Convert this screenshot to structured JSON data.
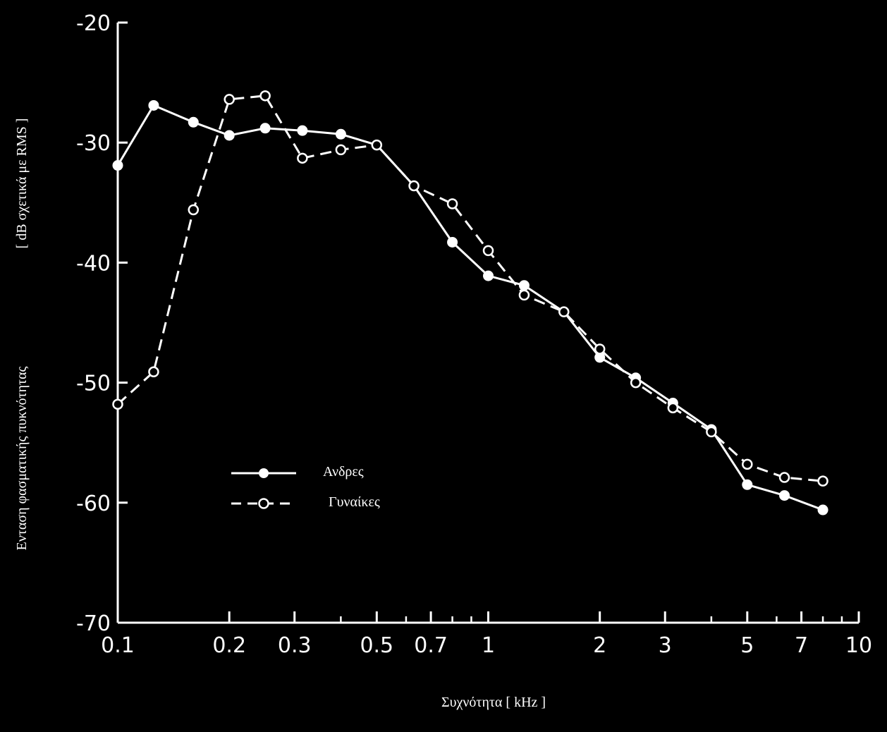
{
  "chart_data": {
    "type": "line",
    "title": "",
    "xlabel": "Συχνότητα [ kHz ]",
    "ylabel": "Ενταση φασματικής πυκνότητας [ dB σχετικά με RMS ]",
    "ylabel_lines": [
      "[ dB σχετικά με RMS ]",
      "Ενταση φασματικής πυκνότητας"
    ],
    "x_scale": "log",
    "xlim": [
      0.1,
      10
    ],
    "ylim": [
      -70,
      -20
    ],
    "grid": false,
    "background_color": "#000000",
    "foreground_color": "#ffffff",
    "x_ticks": [
      {
        "value": 0.1,
        "label": "0.1"
      },
      {
        "value": 0.2,
        "label": "0.2"
      },
      {
        "value": 0.3,
        "label": "0.3"
      },
      {
        "value": 0.5,
        "label": "0.5"
      },
      {
        "value": 0.7,
        "label": "0.7"
      },
      {
        "value": 1,
        "label": "1"
      },
      {
        "value": 2,
        "label": "2"
      },
      {
        "value": 3,
        "label": "3"
      },
      {
        "value": 5,
        "label": "5"
      },
      {
        "value": 7,
        "label": "7"
      },
      {
        "value": 10,
        "label": "10"
      }
    ],
    "x_minor_ticks": [
      0.4,
      0.6,
      0.8,
      0.9,
      4,
      6,
      8,
      9
    ],
    "y_ticks": [
      {
        "value": -20,
        "label": "-20"
      },
      {
        "value": -30,
        "label": "-30"
      },
      {
        "value": -40,
        "label": "-40"
      },
      {
        "value": -50,
        "label": "-50"
      },
      {
        "value": -60,
        "label": "-60"
      },
      {
        "value": -70,
        "label": "-70"
      }
    ],
    "legend": {
      "placement": "center-left",
      "entries": [
        "Ανδρες",
        "Γυναίκες"
      ]
    },
    "series": [
      {
        "name": "Ανδρες",
        "line_style": "solid",
        "marker": "filled-circle",
        "x": [
          0.1,
          0.125,
          0.16,
          0.2,
          0.25,
          0.315,
          0.4,
          0.5,
          0.63,
          0.8,
          1,
          1.25,
          1.6,
          2,
          2.5,
          3.15,
          4,
          5,
          6.3,
          8
        ],
        "y": [
          -31.9,
          -26.9,
          -28.3,
          -29.4,
          -28.8,
          -29.0,
          -29.3,
          -30.2,
          -33.6,
          -38.3,
          -41.1,
          -41.9,
          -44.1,
          -47.9,
          -49.6,
          -51.7,
          -53.9,
          -58.5,
          -59.4,
          -60.6
        ]
      },
      {
        "name": "Γυναίκες",
        "line_style": "dashed",
        "marker": "open-circle",
        "x": [
          0.1,
          0.125,
          0.16,
          0.2,
          0.25,
          0.315,
          0.4,
          0.5,
          0.63,
          0.8,
          1,
          1.25,
          1.6,
          2,
          2.5,
          3.15,
          4,
          5,
          6.3,
          8
        ],
        "y": [
          -51.8,
          -49.1,
          -35.6,
          -26.4,
          -26.1,
          -31.3,
          -30.6,
          -30.2,
          -33.6,
          -35.1,
          -39.0,
          -42.7,
          -44.1,
          -47.2,
          -50.0,
          -52.1,
          -54.1,
          -56.8,
          -57.9,
          -58.2
        ]
      }
    ]
  }
}
